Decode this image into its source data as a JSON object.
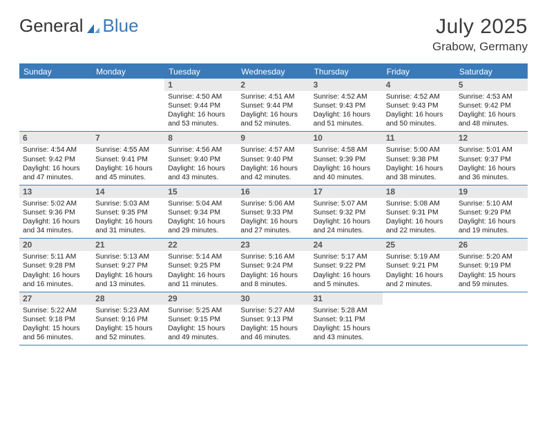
{
  "brand": {
    "part1": "General",
    "part2": "Blue"
  },
  "title": "July 2025",
  "location": "Grabow, Germany",
  "colors": {
    "brand_blue": "#3a7ab8",
    "header_row_bg": "#e9e9e9",
    "text": "#222222",
    "title_text": "#3a3a3a"
  },
  "day_names": [
    "Sunday",
    "Monday",
    "Tuesday",
    "Wednesday",
    "Thursday",
    "Friday",
    "Saturday"
  ],
  "weeks": [
    [
      null,
      null,
      {
        "n": "1",
        "sr": "Sunrise: 4:50 AM",
        "ss": "Sunset: 9:44 PM",
        "dl": "Daylight: 16 hours and 53 minutes."
      },
      {
        "n": "2",
        "sr": "Sunrise: 4:51 AM",
        "ss": "Sunset: 9:44 PM",
        "dl": "Daylight: 16 hours and 52 minutes."
      },
      {
        "n": "3",
        "sr": "Sunrise: 4:52 AM",
        "ss": "Sunset: 9:43 PM",
        "dl": "Daylight: 16 hours and 51 minutes."
      },
      {
        "n": "4",
        "sr": "Sunrise: 4:52 AM",
        "ss": "Sunset: 9:43 PM",
        "dl": "Daylight: 16 hours and 50 minutes."
      },
      {
        "n": "5",
        "sr": "Sunrise: 4:53 AM",
        "ss": "Sunset: 9:42 PM",
        "dl": "Daylight: 16 hours and 48 minutes."
      }
    ],
    [
      {
        "n": "6",
        "sr": "Sunrise: 4:54 AM",
        "ss": "Sunset: 9:42 PM",
        "dl": "Daylight: 16 hours and 47 minutes."
      },
      {
        "n": "7",
        "sr": "Sunrise: 4:55 AM",
        "ss": "Sunset: 9:41 PM",
        "dl": "Daylight: 16 hours and 45 minutes."
      },
      {
        "n": "8",
        "sr": "Sunrise: 4:56 AM",
        "ss": "Sunset: 9:40 PM",
        "dl": "Daylight: 16 hours and 43 minutes."
      },
      {
        "n": "9",
        "sr": "Sunrise: 4:57 AM",
        "ss": "Sunset: 9:40 PM",
        "dl": "Daylight: 16 hours and 42 minutes."
      },
      {
        "n": "10",
        "sr": "Sunrise: 4:58 AM",
        "ss": "Sunset: 9:39 PM",
        "dl": "Daylight: 16 hours and 40 minutes."
      },
      {
        "n": "11",
        "sr": "Sunrise: 5:00 AM",
        "ss": "Sunset: 9:38 PM",
        "dl": "Daylight: 16 hours and 38 minutes."
      },
      {
        "n": "12",
        "sr": "Sunrise: 5:01 AM",
        "ss": "Sunset: 9:37 PM",
        "dl": "Daylight: 16 hours and 36 minutes."
      }
    ],
    [
      {
        "n": "13",
        "sr": "Sunrise: 5:02 AM",
        "ss": "Sunset: 9:36 PM",
        "dl": "Daylight: 16 hours and 34 minutes."
      },
      {
        "n": "14",
        "sr": "Sunrise: 5:03 AM",
        "ss": "Sunset: 9:35 PM",
        "dl": "Daylight: 16 hours and 31 minutes."
      },
      {
        "n": "15",
        "sr": "Sunrise: 5:04 AM",
        "ss": "Sunset: 9:34 PM",
        "dl": "Daylight: 16 hours and 29 minutes."
      },
      {
        "n": "16",
        "sr": "Sunrise: 5:06 AM",
        "ss": "Sunset: 9:33 PM",
        "dl": "Daylight: 16 hours and 27 minutes."
      },
      {
        "n": "17",
        "sr": "Sunrise: 5:07 AM",
        "ss": "Sunset: 9:32 PM",
        "dl": "Daylight: 16 hours and 24 minutes."
      },
      {
        "n": "18",
        "sr": "Sunrise: 5:08 AM",
        "ss": "Sunset: 9:31 PM",
        "dl": "Daylight: 16 hours and 22 minutes."
      },
      {
        "n": "19",
        "sr": "Sunrise: 5:10 AM",
        "ss": "Sunset: 9:29 PM",
        "dl": "Daylight: 16 hours and 19 minutes."
      }
    ],
    [
      {
        "n": "20",
        "sr": "Sunrise: 5:11 AM",
        "ss": "Sunset: 9:28 PM",
        "dl": "Daylight: 16 hours and 16 minutes."
      },
      {
        "n": "21",
        "sr": "Sunrise: 5:13 AM",
        "ss": "Sunset: 9:27 PM",
        "dl": "Daylight: 16 hours and 13 minutes."
      },
      {
        "n": "22",
        "sr": "Sunrise: 5:14 AM",
        "ss": "Sunset: 9:25 PM",
        "dl": "Daylight: 16 hours and 11 minutes."
      },
      {
        "n": "23",
        "sr": "Sunrise: 5:16 AM",
        "ss": "Sunset: 9:24 PM",
        "dl": "Daylight: 16 hours and 8 minutes."
      },
      {
        "n": "24",
        "sr": "Sunrise: 5:17 AM",
        "ss": "Sunset: 9:22 PM",
        "dl": "Daylight: 16 hours and 5 minutes."
      },
      {
        "n": "25",
        "sr": "Sunrise: 5:19 AM",
        "ss": "Sunset: 9:21 PM",
        "dl": "Daylight: 16 hours and 2 minutes."
      },
      {
        "n": "26",
        "sr": "Sunrise: 5:20 AM",
        "ss": "Sunset: 9:19 PM",
        "dl": "Daylight: 15 hours and 59 minutes."
      }
    ],
    [
      {
        "n": "27",
        "sr": "Sunrise: 5:22 AM",
        "ss": "Sunset: 9:18 PM",
        "dl": "Daylight: 15 hours and 56 minutes."
      },
      {
        "n": "28",
        "sr": "Sunrise: 5:23 AM",
        "ss": "Sunset: 9:16 PM",
        "dl": "Daylight: 15 hours and 52 minutes."
      },
      {
        "n": "29",
        "sr": "Sunrise: 5:25 AM",
        "ss": "Sunset: 9:15 PM",
        "dl": "Daylight: 15 hours and 49 minutes."
      },
      {
        "n": "30",
        "sr": "Sunrise: 5:27 AM",
        "ss": "Sunset: 9:13 PM",
        "dl": "Daylight: 15 hours and 46 minutes."
      },
      {
        "n": "31",
        "sr": "Sunrise: 5:28 AM",
        "ss": "Sunset: 9:11 PM",
        "dl": "Daylight: 15 hours and 43 minutes."
      },
      null,
      null
    ]
  ]
}
